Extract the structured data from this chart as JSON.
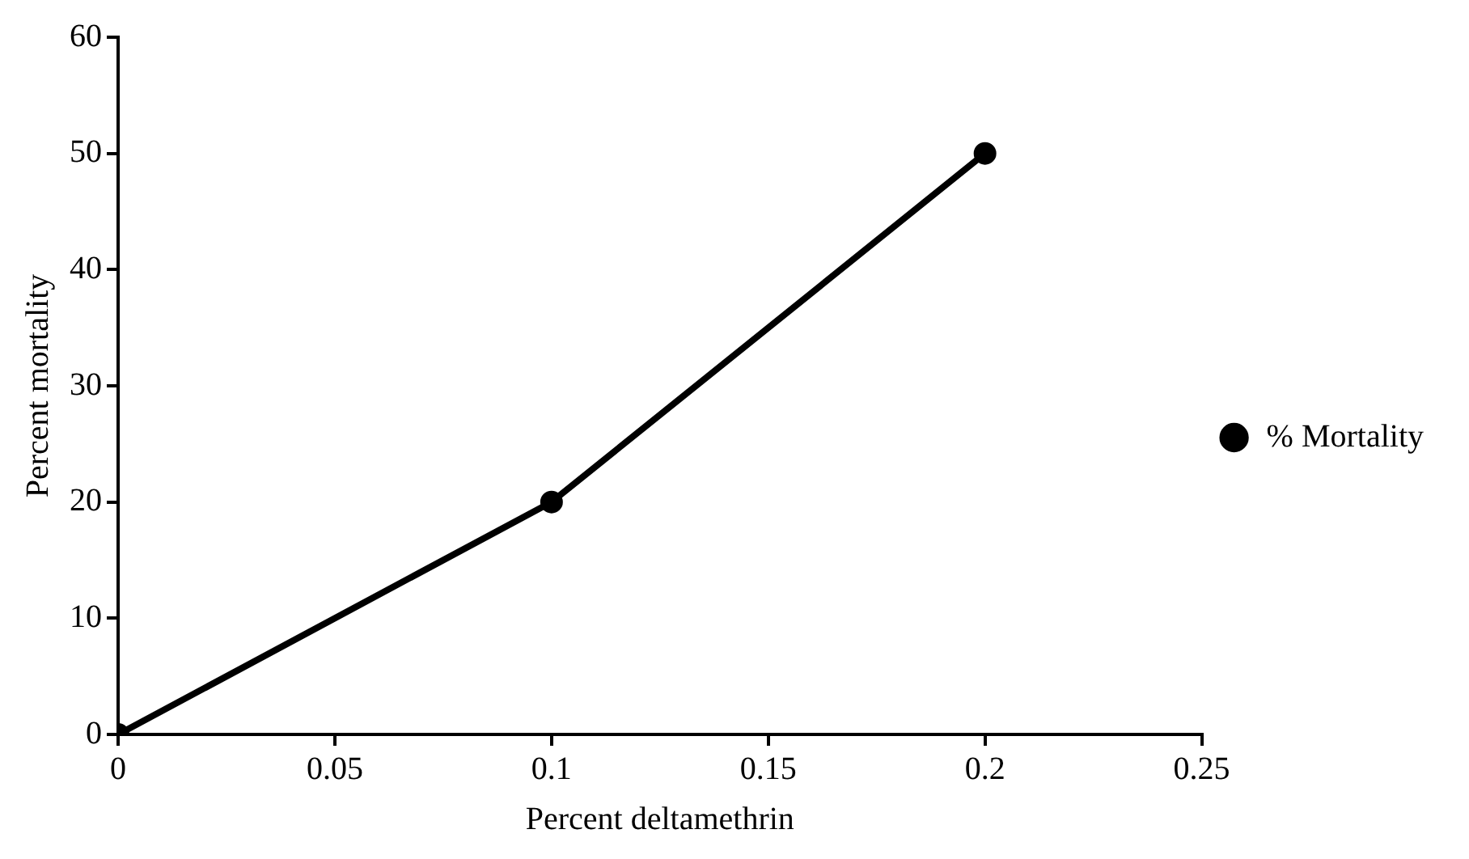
{
  "chart_data": {
    "type": "line",
    "xlabel": "Percent deltamethrin",
    "ylabel": "Percent mortality",
    "x": [
      0,
      0.1,
      0.2
    ],
    "series": [
      {
        "name": "% Mortality",
        "color": "#000000",
        "values": [
          0,
          20,
          50
        ]
      }
    ],
    "xlim": [
      0,
      0.25
    ],
    "xticks": [
      0,
      0.05,
      0.1,
      0.15,
      0.2,
      0.25
    ],
    "ylim": [
      0,
      60
    ],
    "yticks": [
      0,
      10,
      20,
      30,
      40,
      50,
      60
    ],
    "legend": "right",
    "marker": "circle",
    "line_style": "solid"
  }
}
